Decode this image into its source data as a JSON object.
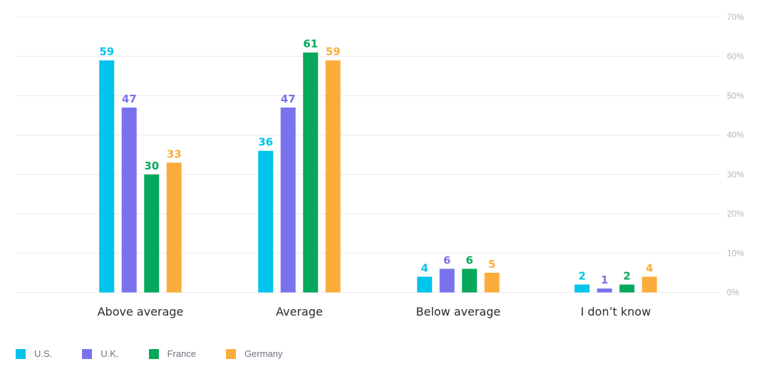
{
  "chart_data": {
    "type": "bar",
    "categories": [
      "Above average",
      "Average",
      "Below average",
      "I don’t know"
    ],
    "series": [
      {
        "name": "U.S.",
        "color": "#00c4ec",
        "values": [
          59,
          36,
          4,
          2
        ]
      },
      {
        "name": "U.K.",
        "color": "#7a72ec",
        "values": [
          47,
          47,
          6,
          1
        ]
      },
      {
        "name": "France",
        "color": "#06a85c",
        "values": [
          30,
          61,
          6,
          2
        ]
      },
      {
        "name": "Germany",
        "color": "#fbad3c",
        "values": [
          33,
          59,
          5,
          4
        ]
      }
    ],
    "yticks": [
      "0%",
      "10%",
      "20%",
      "30%",
      "40%",
      "50%",
      "60%",
      "70%"
    ],
    "ylim": [
      0,
      70
    ],
    "y_axis_side": "right",
    "grid": true,
    "data_labels": true,
    "legend_position": "bottom-left"
  }
}
